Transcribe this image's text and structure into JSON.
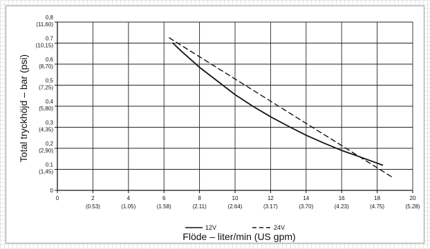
{
  "chart_data": {
    "type": "line",
    "xlabel": "Flöde – liter/min (US gpm)",
    "ylabel": "Total tryckhöjd – bar (psi)",
    "xlim": [
      0,
      20
    ],
    "ylim": [
      0,
      0.8
    ],
    "grid": true,
    "x_ticks": [
      {
        "value": 0,
        "label": "0",
        "sub": ""
      },
      {
        "value": 2,
        "label": "2",
        "sub": "(0.53)"
      },
      {
        "value": 4,
        "label": "4",
        "sub": "(1.05)"
      },
      {
        "value": 6,
        "label": "6",
        "sub": "(1.58)"
      },
      {
        "value": 8,
        "label": "8",
        "sub": "(2.11)"
      },
      {
        "value": 10,
        "label": "10",
        "sub": "(2.64)"
      },
      {
        "value": 12,
        "label": "12",
        "sub": "(3.17)"
      },
      {
        "value": 14,
        "label": "14",
        "sub": "(3.70)"
      },
      {
        "value": 16,
        "label": "16",
        "sub": "(4.23)"
      },
      {
        "value": 18,
        "label": "18",
        "sub": "(4.75)"
      },
      {
        "value": 20,
        "label": "20",
        "sub": "(5.28)"
      }
    ],
    "y_ticks": [
      {
        "value": 0,
        "label": "0",
        "sub": ""
      },
      {
        "value": 0.1,
        "label": "0.1",
        "sub": "(1,45)"
      },
      {
        "value": 0.2,
        "label": "0,2",
        "sub": "(2,90)"
      },
      {
        "value": 0.3,
        "label": "0,3",
        "sub": "(4,35)"
      },
      {
        "value": 0.4,
        "label": "0,4",
        "sub": "(5,80)"
      },
      {
        "value": 0.5,
        "label": "0,5",
        "sub": "(7,25)"
      },
      {
        "value": 0.6,
        "label": "0,6",
        "sub": "(8,70)"
      },
      {
        "value": 0.7,
        "label": "0.7",
        "sub": "(10,15)"
      },
      {
        "value": 0.8,
        "label": "0,8",
        "sub": "(11,60)"
      }
    ],
    "series": [
      {
        "name": "12V",
        "style": "solid",
        "color": "#111111",
        "points": [
          [
            6.5,
            0.7
          ],
          [
            7,
            0.66
          ],
          [
            8,
            0.585
          ],
          [
            9,
            0.52
          ],
          [
            10,
            0.455
          ],
          [
            11,
            0.4
          ],
          [
            12,
            0.35
          ],
          [
            13,
            0.305
          ],
          [
            14,
            0.262
          ],
          [
            15,
            0.225
          ],
          [
            16,
            0.19
          ],
          [
            17,
            0.16
          ],
          [
            18.3,
            0.12
          ]
        ]
      },
      {
        "name": "24V",
        "style": "dashed",
        "color": "#111111",
        "points": [
          [
            6.3,
            0.725
          ],
          [
            18.9,
            0.06
          ]
        ]
      }
    ],
    "legend": {
      "position": "bottom-center"
    }
  }
}
